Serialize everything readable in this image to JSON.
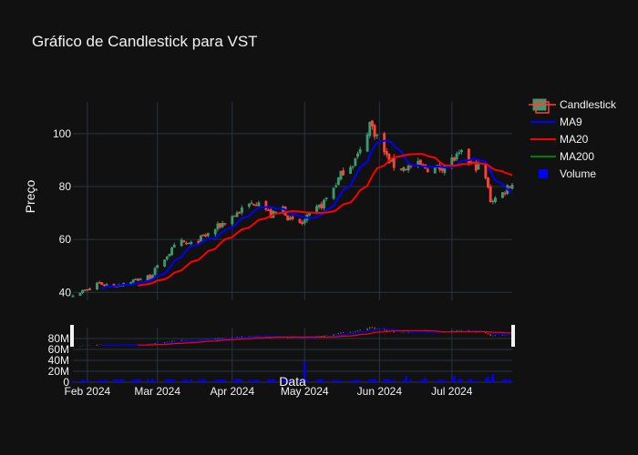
{
  "colors": {
    "background": "#111111",
    "increasing": "#3d9970",
    "decreasing": "#ff4136",
    "ma9": "#0000ff",
    "ma20": "#ff0000",
    "ma200": "#008000",
    "volume": "#0000ff",
    "grid": "#283442",
    "text": "#f2f2f2"
  },
  "chart_data": {
    "type": "candlestick",
    "title": "Gráfico de Candlestick para VST",
    "xlabel": "Data",
    "ylabel": "Preço",
    "x_range": [
      "2024-01-26",
      "2024-07-26"
    ],
    "y_range": [
      37,
      112
    ],
    "volume_range": [
      0,
      100000000
    ],
    "x_ticks": [
      {
        "date": "2024-02-01",
        "label": "Feb 2024"
      },
      {
        "date": "2024-03-01",
        "label": "Mar 2024"
      },
      {
        "date": "2024-04-01",
        "label": "Apr 2024"
      },
      {
        "date": "2024-05-01",
        "label": "May 2024"
      },
      {
        "date": "2024-06-01",
        "label": "Jun 2024"
      },
      {
        "date": "2024-07-01",
        "label": "Jul 2024"
      }
    ],
    "y_ticks": [
      40,
      60,
      80,
      100
    ],
    "volume_ticks": [
      {
        "value": 0,
        "label": "0"
      },
      {
        "value": 20000000,
        "label": "20M"
      },
      {
        "value": 40000000,
        "label": "40M"
      },
      {
        "value": 60000000,
        "label": "60M"
      },
      {
        "value": 80000000,
        "label": "80M"
      }
    ],
    "legend": [
      {
        "name": "Candlestick",
        "kind": "candle"
      },
      {
        "name": "MA9",
        "kind": "line",
        "color": "#0000ff"
      },
      {
        "name": "MA20",
        "kind": "line",
        "color": "#ff0000"
      },
      {
        "name": "MA200",
        "kind": "line",
        "color": "#008000"
      },
      {
        "name": "Volume",
        "kind": "square",
        "color": "#0000ff"
      }
    ],
    "legend_position": "top-right",
    "grid": true,
    "close_anchors": [
      [
        "2024-01-26",
        39.5
      ],
      [
        "2024-02-02",
        41
      ],
      [
        "2024-02-05",
        43.5
      ],
      [
        "2024-02-12",
        42.5
      ],
      [
        "2024-02-20",
        44.5
      ],
      [
        "2024-02-27",
        46
      ],
      [
        "2024-03-05",
        54
      ],
      [
        "2024-03-10",
        59
      ],
      [
        "2024-03-15",
        58
      ],
      [
        "2024-03-22",
        62
      ],
      [
        "2024-03-28",
        66
      ],
      [
        "2024-04-03",
        70
      ],
      [
        "2024-04-08",
        73
      ],
      [
        "2024-04-12",
        75
      ],
      [
        "2024-04-17",
        69
      ],
      [
        "2024-04-22",
        72
      ],
      [
        "2024-04-25",
        67
      ],
      [
        "2024-04-30",
        66
      ],
      [
        "2024-05-03",
        69
      ],
      [
        "2024-05-08",
        73
      ],
      [
        "2024-05-12",
        78
      ],
      [
        "2024-05-17",
        86
      ],
      [
        "2024-05-21",
        89
      ],
      [
        "2024-05-24",
        93
      ],
      [
        "2024-05-28",
        104
      ],
      [
        "2024-05-31",
        99
      ],
      [
        "2024-06-04",
        91
      ],
      [
        "2024-06-07",
        88
      ],
      [
        "2024-06-11",
        87
      ],
      [
        "2024-06-17",
        88
      ],
      [
        "2024-06-21",
        87
      ],
      [
        "2024-06-26",
        87
      ],
      [
        "2024-07-01",
        90
      ],
      [
        "2024-07-05",
        92
      ],
      [
        "2024-07-10",
        88
      ],
      [
        "2024-07-14",
        87
      ],
      [
        "2024-07-17",
        75
      ],
      [
        "2024-07-21",
        76
      ],
      [
        "2024-07-24",
        80
      ],
      [
        "2024-07-25",
        81
      ]
    ],
    "volume_spikes": [
      [
        "2024-05-01",
        38000000
      ],
      [
        "2024-06-12",
        12000000
      ],
      [
        "2024-06-20",
        8000000
      ],
      [
        "2024-07-02",
        12000000
      ],
      [
        "2024-07-16",
        10000000
      ],
      [
        "2024-07-18",
        15000000
      ]
    ]
  }
}
